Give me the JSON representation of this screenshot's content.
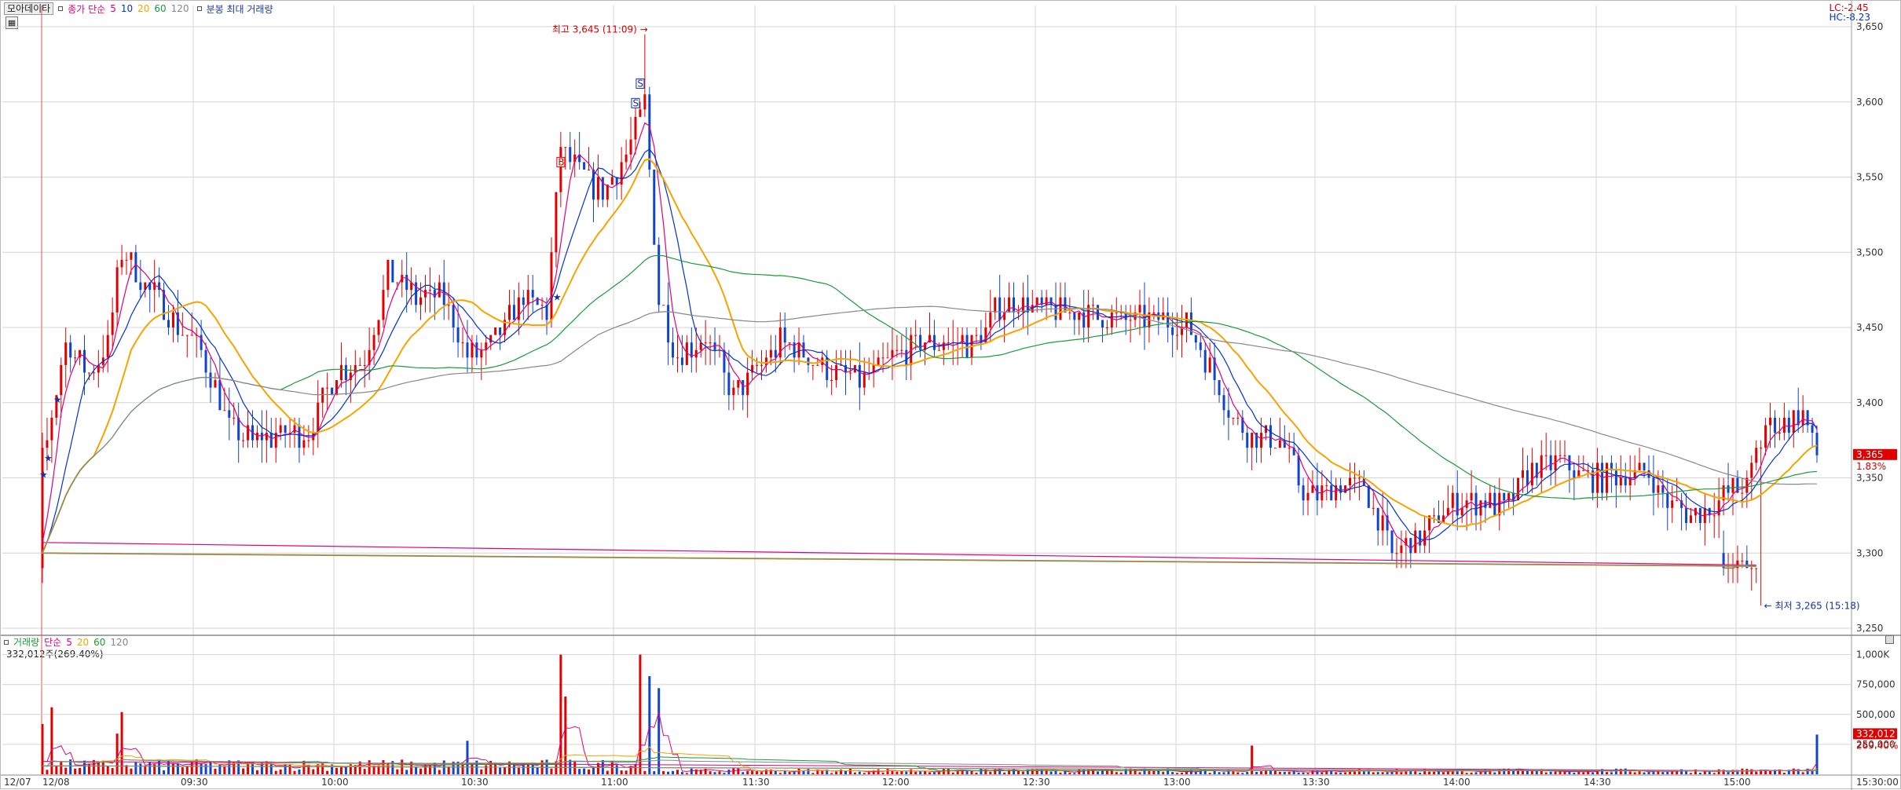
{
  "toolbar": {
    "mode_button": "모아데이타",
    "indicator_name": "종가 단순",
    "ma_periods": [
      "5",
      "10",
      "20",
      "60",
      "120"
    ],
    "ma_colors": [
      "#e0007a",
      "#0033cc",
      "#f5a400",
      "#1a9a3a",
      "#888888"
    ],
    "extra": "분봉 최대 거래량"
  },
  "volume_legend": {
    "name": "거래량",
    "indicator": "단순",
    "ma_periods": [
      "5",
      "20",
      "60",
      "120"
    ],
    "current_value": "332,012주(269.40%)"
  },
  "lc_hc": {
    "lc": "LC:-2.45",
    "hc": "HC:-8.23"
  },
  "price_axis": {
    "labels": [
      "3,650",
      "3,600",
      "3,550",
      "3,500",
      "3,450",
      "3,400",
      "3,350",
      "3,300",
      "3,250"
    ],
    "current_price": "3,365",
    "current_change": "1.83%"
  },
  "volume_axis": {
    "labels": [
      "1,000K",
      "750,000",
      "500,000",
      "250,000"
    ],
    "current_volume": "332,012",
    "current_ratio": "269.40%"
  },
  "time_axis": {
    "labels": [
      "12/07",
      "12/08",
      "09:30",
      "10:00",
      "10:30",
      "11:00",
      "11:30",
      "12:00",
      "12:30",
      "13:00",
      "13:30",
      "14:00",
      "14:30",
      "15:00",
      "15:30:00"
    ]
  },
  "annotations": {
    "high": "최고 3,645 (11:09)",
    "low": "최저 3,265 (15:18)",
    "signal_s": "S",
    "signal_b": "B"
  },
  "colors": {
    "up": "#e00000",
    "down": "#1144cc",
    "grid": "#d4d4d4",
    "current_price_bg": "#e00000"
  },
  "chart_data": {
    "type": "candlestick",
    "price_ylim": [
      3245,
      3655
    ],
    "volume_ylim": [
      0,
      1050000
    ],
    "ma_periods": [
      5,
      10,
      20,
      60,
      120
    ],
    "high": 3645,
    "low": 3265,
    "last_close": 3365,
    "last_volume": 332012,
    "anchors": [
      {
        "time": "12/07 15:10",
        "close": 3300
      },
      {
        "time": "12/07 15:18",
        "close": 3280
      },
      {
        "time": "12/08 09:00",
        "close": 3360
      },
      {
        "time": "12/08 09:05",
        "close": 3440
      },
      {
        "time": "12/08 09:10",
        "close": 3420
      },
      {
        "time": "12/08 09:14",
        "close": 3440
      },
      {
        "time": "12/08 09:17",
        "close": 3500
      },
      {
        "time": "12/08 09:23",
        "close": 3475
      },
      {
        "time": "12/08 09:28",
        "close": 3455
      },
      {
        "time": "12/08 09:34",
        "close": 3435
      },
      {
        "time": "12/08 09:40",
        "close": 3385
      },
      {
        "time": "12/08 09:45",
        "close": 3375
      },
      {
        "time": "12/08 09:52",
        "close": 3380
      },
      {
        "time": "12/08 09:57",
        "close": 3380
      },
      {
        "time": "12/08 10:03",
        "close": 3420
      },
      {
        "time": "12/08 10:09",
        "close": 3430
      },
      {
        "time": "12/08 10:14",
        "close": 3485
      },
      {
        "time": "12/08 10:20",
        "close": 3470
      },
      {
        "time": "12/08 10:26",
        "close": 3470
      },
      {
        "time": "12/08 10:31",
        "close": 3430
      },
      {
        "time": "12/08 10:37",
        "close": 3440
      },
      {
        "time": "12/08 10:43",
        "close": 3470
      },
      {
        "time": "12/08 10:48",
        "close": 3460
      },
      {
        "time": "12/08 10:51",
        "close": 3570
      },
      {
        "time": "12/08 10:56",
        "close": 3550
      },
      {
        "time": "12/08 11:00",
        "close": 3540
      },
      {
        "time": "12/08 11:05",
        "close": 3565
      },
      {
        "time": "12/08 11:09",
        "close": 3600
      },
      {
        "time": "12/08 11:12",
        "close": 3470
      },
      {
        "time": "12/08 11:16",
        "close": 3430
      },
      {
        "time": "12/08 11:22",
        "close": 3445
      },
      {
        "time": "12/08 11:28",
        "close": 3405
      },
      {
        "time": "12/08 11:32",
        "close": 3420
      },
      {
        "time": "12/08 11:38",
        "close": 3440
      },
      {
        "time": "12/08 11:44",
        "close": 3430
      },
      {
        "time": "12/08 11:48",
        "close": 3420
      },
      {
        "time": "12/08 11:56",
        "close": 3415
      },
      {
        "time": "12/08 12:02",
        "close": 3430
      },
      {
        "time": "12/08 12:08",
        "close": 3440
      },
      {
        "time": "12/08 12:14",
        "close": 3440
      },
      {
        "time": "12/08 12:20",
        "close": 3440
      },
      {
        "time": "12/08 12:25",
        "close": 3465
      },
      {
        "time": "12/08 12:31",
        "close": 3465
      },
      {
        "time": "12/08 12:37",
        "close": 3460
      },
      {
        "time": "12/08 12:43",
        "close": 3460
      },
      {
        "time": "12/08 12:49",
        "close": 3455
      },
      {
        "time": "12/08 12:55",
        "close": 3455
      },
      {
        "time": "12/08 13:01",
        "close": 3455
      },
      {
        "time": "12/08 13:05",
        "close": 3450
      },
      {
        "time": "12/08 13:10",
        "close": 3425
      },
      {
        "time": "12/08 13:14",
        "close": 3395
      },
      {
        "time": "12/08 13:19",
        "close": 3375
      },
      {
        "time": "12/08 13:25",
        "close": 3375
      },
      {
        "time": "12/08 13:31",
        "close": 3335
      },
      {
        "time": "12/08 13:37",
        "close": 3345
      },
      {
        "time": "12/08 13:43",
        "close": 3345
      },
      {
        "time": "12/08 13:49",
        "close": 3300
      },
      {
        "time": "12/08 13:55",
        "close": 3310
      },
      {
        "time": "12/08 14:01",
        "close": 3330
      },
      {
        "time": "12/08 14:07",
        "close": 3335
      },
      {
        "time": "12/08 14:13",
        "close": 3330
      },
      {
        "time": "12/08 14:19",
        "close": 3355
      },
      {
        "time": "12/08 14:25",
        "close": 3360
      },
      {
        "time": "12/08 14:31",
        "close": 3350
      },
      {
        "time": "12/08 14:37",
        "close": 3350
      },
      {
        "time": "12/08 14:43",
        "close": 3355
      },
      {
        "time": "12/08 14:49",
        "close": 3330
      },
      {
        "time": "12/08 14:55",
        "close": 3325
      },
      {
        "time": "12/08 15:01",
        "close": 3340
      },
      {
        "time": "12/08 15:05",
        "close": 3345
      },
      {
        "time": "12/08 15:09",
        "close": 3385
      },
      {
        "time": "12/08 15:13",
        "close": 3385
      },
      {
        "time": "12/08 15:17",
        "close": 3395
      },
      {
        "time": "12/08 15:20",
        "close": 3365
      }
    ],
    "volume_spikes": [
      {
        "time": "12/08 09:00",
        "volume": 420000
      },
      {
        "time": "12/08 09:02",
        "volume": 560000
      },
      {
        "time": "12/08 09:17",
        "volume": 520000
      },
      {
        "time": "12/08 09:16",
        "volume": 340000
      },
      {
        "time": "12/08 10:31",
        "volume": 280000
      },
      {
        "time": "12/08 10:51",
        "volume": 1000000
      },
      {
        "time": "12/08 10:52",
        "volume": 650000
      },
      {
        "time": "12/08 11:08",
        "volume": 1000000
      },
      {
        "time": "12/08 11:10",
        "volume": 820000
      },
      {
        "time": "12/08 11:12",
        "volume": 720000
      },
      {
        "time": "12/08 13:19",
        "volume": 240000
      },
      {
        "time": "12/08 15:20",
        "volume": 332012
      }
    ]
  }
}
